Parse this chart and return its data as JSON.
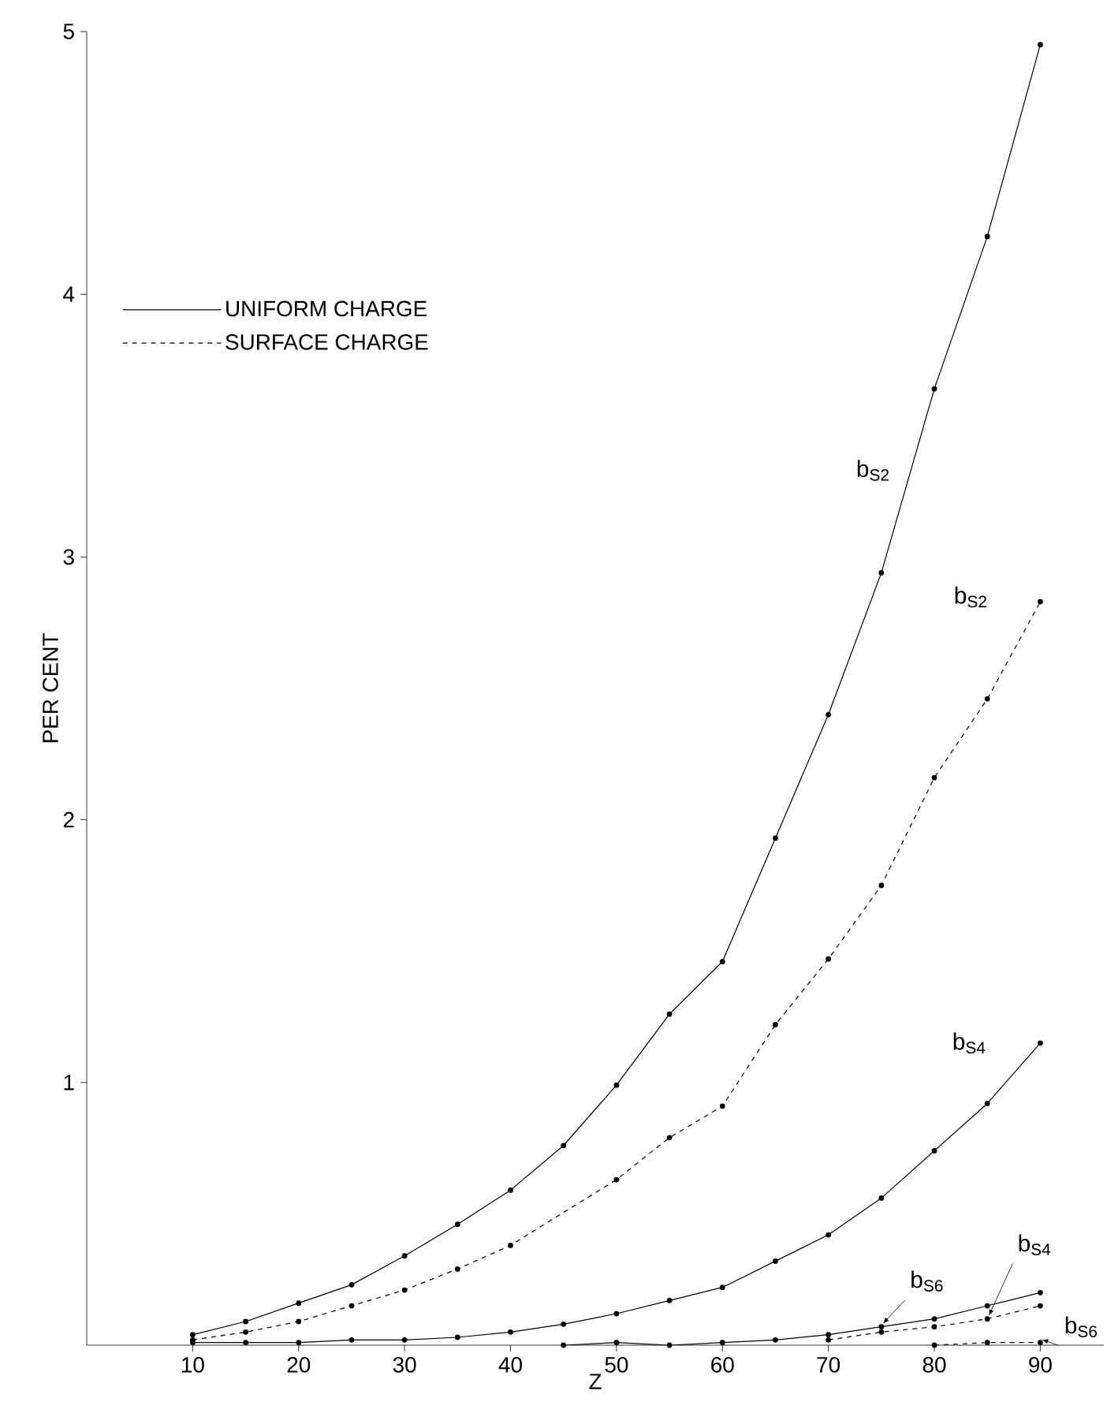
{
  "chart_data": {
    "type": "line",
    "xlabel": "Z",
    "ylabel": "PER CENT",
    "xlim": [
      0,
      96
    ],
    "ylim": [
      0,
      5
    ],
    "xticks": [
      10,
      20,
      30,
      40,
      50,
      60,
      70,
      80,
      90
    ],
    "yticks": [
      1,
      2,
      3,
      4,
      5
    ],
    "grid": false,
    "legend": "top left",
    "marker": "circle",
    "series": [
      {
        "name": "UNIFORM CHARGE",
        "color": "#000000",
        "line_style": "solid",
        "x": [
          10,
          15,
          20,
          25,
          30,
          35,
          40,
          45,
          50,
          55,
          60,
          65,
          70,
          75,
          80,
          85,
          90
        ],
        "values": [
          0.04,
          0.09,
          0.16,
          0.23,
          0.34,
          0.46,
          0.59,
          0.76,
          0.99,
          1.26,
          1.46,
          1.93,
          2.4,
          2.94,
          3.64,
          4.22,
          4.95
        ]
      },
      {
        "name": "SURFACE CHARGE",
        "color": "#000000",
        "line_style": "dashed",
        "x": [
          10,
          15,
          20,
          25,
          30,
          35,
          40,
          50,
          55,
          60,
          65,
          70,
          75,
          80,
          85,
          90
        ],
        "values": [
          0.02,
          0.05,
          0.09,
          0.15,
          0.21,
          0.29,
          0.38,
          0.63,
          0.79,
          0.91,
          1.22,
          1.47,
          1.75,
          2.16,
          2.46,
          2.83
        ]
      },
      {
        "color": "#000000",
        "line_style": "solid",
        "x": [
          10,
          15,
          20,
          25,
          30,
          35,
          40,
          45,
          50,
          55,
          60,
          65,
          70,
          75,
          80,
          85,
          90
        ],
        "values": [
          0.01,
          0.01,
          0.01,
          0.02,
          0.02,
          0.03,
          0.05,
          0.08,
          0.12,
          0.17,
          0.22,
          0.32,
          0.42,
          0.56,
          0.74,
          0.92,
          1.15
        ]
      },
      {
        "color": "#000000",
        "line_style": "solid",
        "x": [
          45,
          50,
          55,
          60,
          65,
          70,
          75,
          80,
          85,
          90
        ],
        "values": [
          0.0,
          0.01,
          0.0,
          0.01,
          0.02,
          0.04,
          0.07,
          0.1,
          0.15,
          0.2
        ]
      },
      {
        "color": "#000000",
        "line_style": "dashed",
        "x": [
          70,
          75,
          80,
          85,
          90
        ],
        "values": [
          0.02,
          0.05,
          0.07,
          0.1,
          0.15
        ]
      },
      {
        "color": "#000000",
        "line_style": "dashed",
        "x": [
          80,
          85,
          90
        ],
        "values": [
          0.0,
          0.01,
          0.01
        ]
      }
    ],
    "annotations": [
      {
        "text": "b$_{S2}$",
        "x": 77.8,
        "y": 3.33
      },
      {
        "text": "b$_{S2}$",
        "x": 90,
        "y": 2.83
      },
      {
        "text": "b$_{S4}$",
        "x": 90,
        "y": 1.15
      },
      {
        "text": "b$_{S6}$",
        "x": 75,
        "y": 0.07
      },
      {
        "text": "b$_{S4}$",
        "x": 85,
        "y": 0.1
      },
      {
        "text": "b$_{S6}$",
        "x": 90,
        "y": 0.01
      }
    ]
  }
}
